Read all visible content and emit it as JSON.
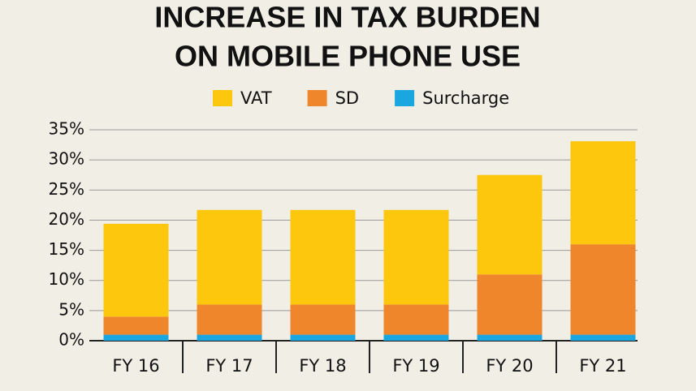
{
  "chart_data": {
    "type": "stacked_bar",
    "title": "INCREASE IN TAX BURDEN",
    "subtitle": "ON MOBILE PHONE USE",
    "categories": [
      "FY 16",
      "FY 17",
      "FY 18",
      "FY 19",
      "FY 20",
      "FY 21"
    ],
    "series": [
      {
        "name": "Surcharge",
        "color": "#1aa7e0",
        "values": [
          1,
          1,
          1,
          1,
          1,
          1
        ]
      },
      {
        "name": "SD",
        "color": "#f0862b",
        "values": [
          3,
          5,
          5,
          5,
          10,
          15
        ]
      },
      {
        "name": "VAT",
        "color": "#fcc70c",
        "values": [
          15.4,
          15.7,
          15.7,
          15.7,
          16.5,
          17.1
        ]
      }
    ],
    "legend_order": [
      2,
      1,
      0
    ],
    "ylim": [
      0,
      35
    ],
    "yticks": [
      {
        "value": 0,
        "label": "0%"
      },
      {
        "value": 5,
        "label": "5%"
      },
      {
        "value": 10,
        "label": "10%"
      },
      {
        "value": 15,
        "label": "15%"
      },
      {
        "value": 20,
        "label": "20%"
      },
      {
        "value": 25,
        "label": "25%"
      },
      {
        "value": 30,
        "label": "30%"
      },
      {
        "value": 35,
        "label": "35%"
      }
    ],
    "grid": true
  }
}
